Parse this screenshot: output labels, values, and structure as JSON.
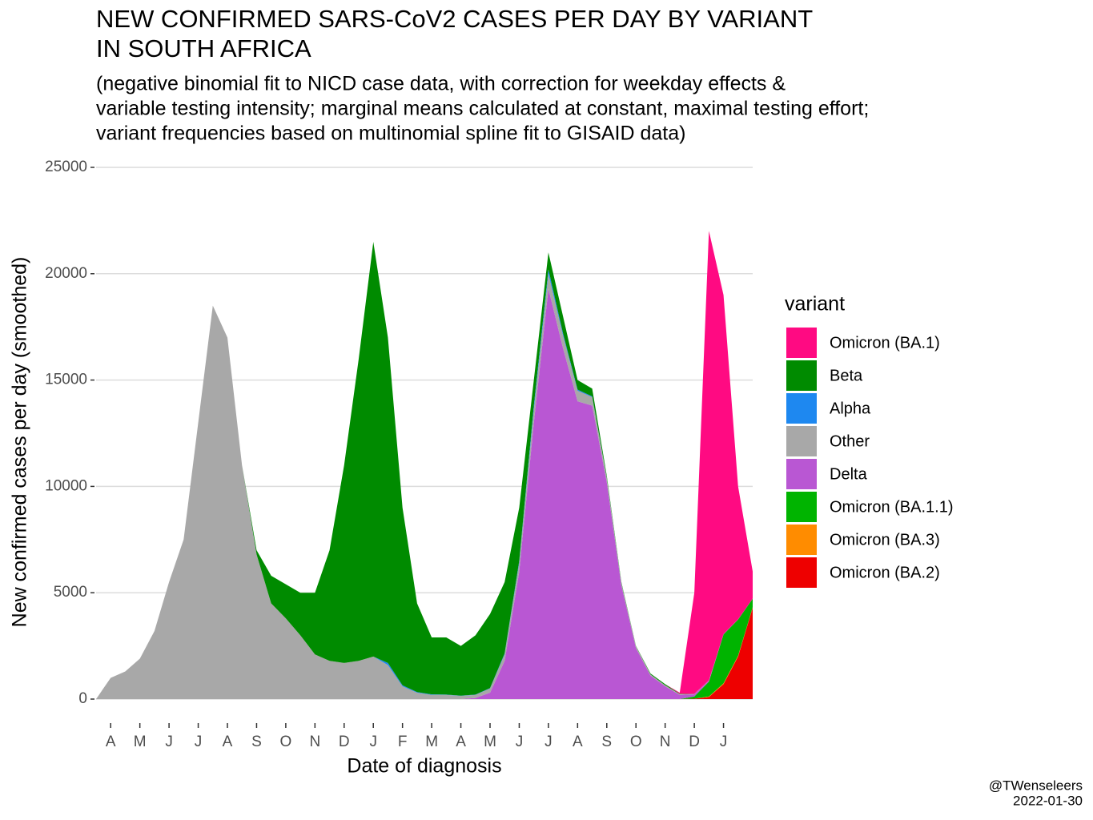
{
  "chart_data": {
    "type": "stacked-area",
    "title": [
      "NEW CONFIRMED SARS-CoV2 CASES PER DAY BY VARIANT",
      "IN SOUTH AFRICA"
    ],
    "subtitle": [
      "(negative binomial fit to NICD case data, with correction for weekday effects &",
      "variable testing intensity; marginal means calculated at constant, maximal testing effort;",
      "variant frequencies based on multinomial spline fit to GISAID data)"
    ],
    "x_label": "Date of diagnosis",
    "y_label": "New confirmed cases per day (smoothed)",
    "legend_title": "variant",
    "caption": [
      "@TWenseleers",
      "2022-01-30"
    ],
    "categories": [
      null,
      "A",
      null,
      "M",
      null,
      "J",
      null,
      "J",
      null,
      "A",
      null,
      "S",
      null,
      "O",
      null,
      "N",
      null,
      "D",
      null,
      "J",
      null,
      "F",
      null,
      "M",
      null,
      "A",
      null,
      "M",
      null,
      "J",
      null,
      "J",
      null,
      "A",
      null,
      "S",
      null,
      "O",
      null,
      "N",
      null,
      "D",
      null,
      "J",
      null,
      null
    ],
    "ylim": [
      0,
      25000
    ],
    "yticks": [
      0,
      5000,
      10000,
      15000,
      20000,
      25000
    ],
    "grid": true,
    "series": [
      {
        "name": "Omicron (BA.1)",
        "color": "#ff0a82",
        "values": [
          0,
          0,
          0,
          0,
          0,
          0,
          0,
          0,
          0,
          0,
          0,
          0,
          0,
          0,
          0,
          0,
          0,
          0,
          0,
          0,
          0,
          0,
          0,
          0,
          0,
          0,
          0,
          0,
          0,
          0,
          0,
          0,
          0,
          0,
          0,
          0,
          0,
          0,
          0,
          0,
          50,
          4760,
          21130,
          15940,
          6250,
          1275
        ]
      },
      {
        "name": "Beta",
        "color": "#008b00",
        "values": [
          0,
          0,
          0,
          0,
          0,
          0,
          0,
          0,
          0,
          0,
          0,
          200,
          1300,
          1600,
          2000,
          2900,
          5200,
          9300,
          14200,
          19500,
          15300,
          8350,
          4170,
          2680,
          2690,
          2340,
          2790,
          3480,
          3350,
          2500,
          1200,
          800,
          800,
          450,
          370,
          90,
          50,
          20,
          40,
          50,
          20,
          0,
          0,
          0,
          0,
          0
        ]
      },
      {
        "name": "Alpha",
        "color": "#1e88f0",
        "values": [
          0,
          0,
          0,
          0,
          0,
          0,
          0,
          0,
          0,
          0,
          0,
          0,
          0,
          0,
          0,
          0,
          0,
          0,
          0,
          0,
          100,
          50,
          30,
          20,
          10,
          10,
          10,
          20,
          50,
          100,
          200,
          200,
          100,
          50,
          30,
          10,
          0,
          0,
          0,
          0,
          0,
          0,
          0,
          0,
          0,
          0
        ]
      },
      {
        "name": "Other",
        "color": "#a8a8a8",
        "values": [
          0,
          1000,
          1300,
          1900,
          3200,
          5500,
          7500,
          13000,
          18500,
          17000,
          11000,
          6800,
          4500,
          3800,
          3000,
          2100,
          1800,
          1700,
          1800,
          2000,
          1600,
          600,
          300,
          200,
          200,
          150,
          150,
          200,
          300,
          400,
          600,
          700,
          600,
          500,
          400,
          200,
          100,
          80,
          60,
          50,
          30,
          20,
          10,
          0,
          0,
          0
        ]
      },
      {
        "name": "Delta",
        "color": "#b957d3",
        "values": [
          0,
          0,
          0,
          0,
          0,
          0,
          0,
          0,
          0,
          0,
          0,
          0,
          0,
          0,
          0,
          0,
          0,
          0,
          0,
          0,
          0,
          0,
          0,
          0,
          0,
          0,
          50,
          300,
          1800,
          6000,
          13000,
          19300,
          16500,
          14000,
          13800,
          10200,
          5350,
          2400,
          1100,
          600,
          200,
          100,
          50,
          20,
          10,
          5
        ]
      },
      {
        "name": "Omicron (BA.1.1)",
        "color": "#00b400",
        "values": [
          0,
          0,
          0,
          0,
          0,
          0,
          0,
          0,
          0,
          0,
          0,
          0,
          0,
          0,
          0,
          0,
          0,
          0,
          0,
          0,
          0,
          0,
          0,
          0,
          0,
          0,
          0,
          0,
          0,
          0,
          0,
          0,
          0,
          0,
          0,
          0,
          0,
          0,
          0,
          0,
          0,
          100,
          700,
          2300,
          1700,
          400
        ]
      },
      {
        "name": "Omicron (BA.3)",
        "color": "#ff8c00",
        "values": [
          0,
          0,
          0,
          0,
          0,
          0,
          0,
          0,
          0,
          0,
          0,
          0,
          0,
          0,
          0,
          0,
          0,
          0,
          0,
          0,
          0,
          0,
          0,
          0,
          0,
          0,
          0,
          0,
          0,
          0,
          0,
          0,
          0,
          0,
          0,
          0,
          0,
          0,
          0,
          0,
          0,
          0,
          20,
          40,
          40,
          20
        ]
      },
      {
        "name": "Omicron (BA.2)",
        "color": "#ee0000",
        "values": [
          0,
          0,
          0,
          0,
          0,
          0,
          0,
          0,
          0,
          0,
          0,
          0,
          0,
          0,
          0,
          0,
          0,
          0,
          0,
          0,
          0,
          0,
          0,
          0,
          0,
          0,
          0,
          0,
          0,
          0,
          0,
          0,
          0,
          0,
          0,
          0,
          0,
          0,
          0,
          0,
          0,
          20,
          100,
          700,
          2000,
          4300
        ]
      }
    ]
  }
}
